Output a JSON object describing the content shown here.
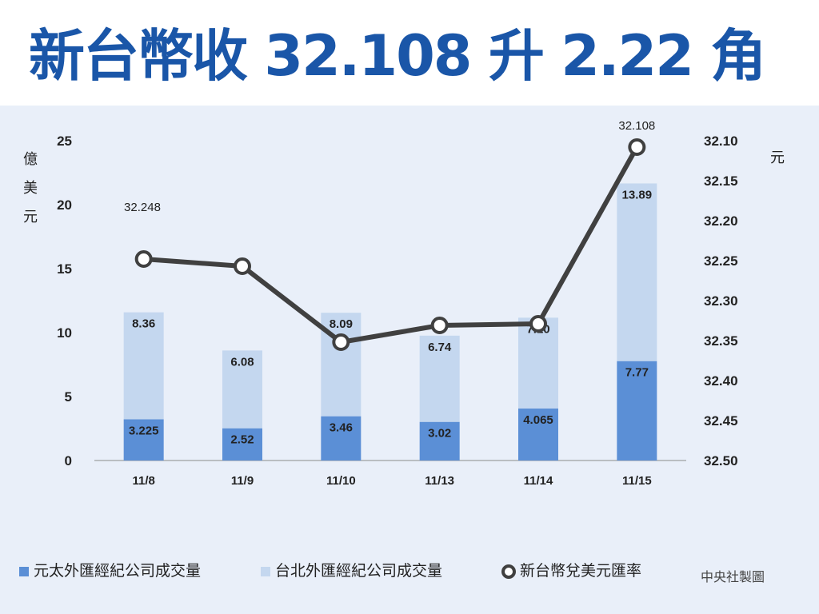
{
  "headline": "新台幣收 32.108 升 2.22 角",
  "credit": "中央社製圖",
  "colors": {
    "headline": "#1a56a8",
    "panel_background": "#e9eff9",
    "yuanta_bar": "#5b8fd6",
    "taipei_bar": "#c4d7ef",
    "rate_line": "#404040"
  },
  "chart_data": {
    "type": "bar+line",
    "categories": [
      "11/8",
      "11/9",
      "11/10",
      "11/13",
      "11/14",
      "11/15"
    ],
    "bar_stacking": "stacked",
    "series": [
      {
        "name": "元太外匯經紀公司成交量",
        "type": "bar",
        "axis": "left",
        "values": [
          3.225,
          2.52,
          3.46,
          3.02,
          4.065,
          7.77
        ],
        "labels": [
          "3.225",
          "2.52",
          "3.46",
          "3.02",
          "4.065",
          "7.77"
        ]
      },
      {
        "name": "台北外匯經紀公司成交量",
        "type": "bar",
        "axis": "left",
        "values": [
          8.36,
          6.08,
          8.09,
          6.74,
          7.1,
          13.89
        ],
        "labels": [
          "8.36",
          "6.08",
          "8.09",
          "6.74",
          "7.10",
          "13.89"
        ]
      },
      {
        "name": "新台幣兌美元匯率",
        "type": "line",
        "axis": "right",
        "values": [
          32.248,
          32.257,
          32.352,
          32.331,
          32.329,
          32.108
        ],
        "labels": [
          "32.248",
          "",
          "",
          "",
          "",
          "32.108"
        ]
      }
    ],
    "y_left": {
      "label": "億美元",
      "ticks": [
        "0",
        "5",
        "10",
        "15",
        "20",
        "25"
      ],
      "range": [
        0,
        25
      ]
    },
    "y_right": {
      "label": "元",
      "ticks": [
        "32.10",
        "32.15",
        "32.20",
        "32.25",
        "32.30",
        "32.35",
        "32.40",
        "32.45",
        "32.50"
      ],
      "range": [
        32.1,
        32.5
      ],
      "inverted": true
    },
    "legend_position": "bottom",
    "grid": false
  }
}
